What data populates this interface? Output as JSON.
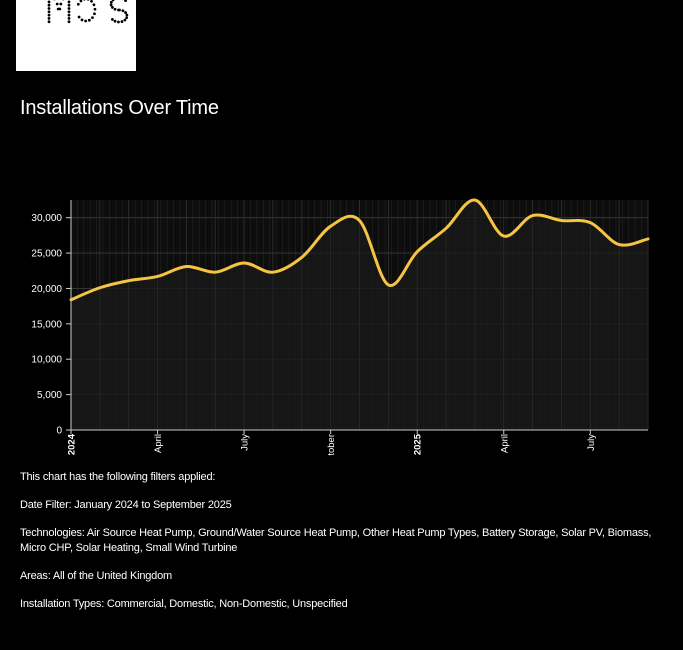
{
  "logo": {
    "text": "MCS"
  },
  "title": "Installations Over Time",
  "chart_data": {
    "type": "area",
    "x": [
      "2024-01",
      "2024-02",
      "2024-03",
      "2024-04",
      "2024-05",
      "2024-06",
      "2024-07",
      "2024-08",
      "2024-09",
      "2024-10",
      "2024-11",
      "2024-12",
      "2025-01",
      "2025-02",
      "2025-03",
      "2025-04",
      "2025-05",
      "2025-06",
      "2025-07",
      "2025-08",
      "2025-09"
    ],
    "values": [
      18400,
      20100,
      21100,
      21700,
      23100,
      22300,
      23600,
      22300,
      24400,
      28800,
      29600,
      20500,
      25200,
      28500,
      32500,
      27400,
      30300,
      29600,
      29300,
      26200,
      27000
    ],
    "y_ticks": [
      "0",
      "5,000",
      "10,000",
      "15,000",
      "20,000",
      "25,000",
      "30,000"
    ],
    "ylim": [
      0,
      32500
    ],
    "x_tick_labels": [
      {
        "label": "2024",
        "index": 0,
        "bold": true
      },
      {
        "label": "April",
        "index": 3,
        "bold": false
      },
      {
        "label": "July",
        "index": 6,
        "bold": false
      },
      {
        "label": "tober",
        "index": 9,
        "bold": false
      },
      {
        "label": "2025",
        "index": 12,
        "bold": true
      },
      {
        "label": "April",
        "index": 15,
        "bold": false
      },
      {
        "label": "July",
        "index": 18,
        "bold": false
      }
    ],
    "grid": true,
    "line_color": "#f5c542",
    "fill_color": "#1a1a1a"
  },
  "filters": {
    "intro": "This chart has the following filters applied:",
    "date": "Date Filter: January 2024 to September 2025",
    "technologies": "Technologies: Air Source Heat Pump, Ground/Water Source Heat Pump, Other Heat Pump Types, Battery Storage, Solar PV, Biomass, Micro CHP, Solar Heating, Small Wind Turbine",
    "areas": "Areas: All of the United Kingdom",
    "installation_types": "Installation Types: Commercial, Domestic, Non-Domestic, Unspecified"
  }
}
